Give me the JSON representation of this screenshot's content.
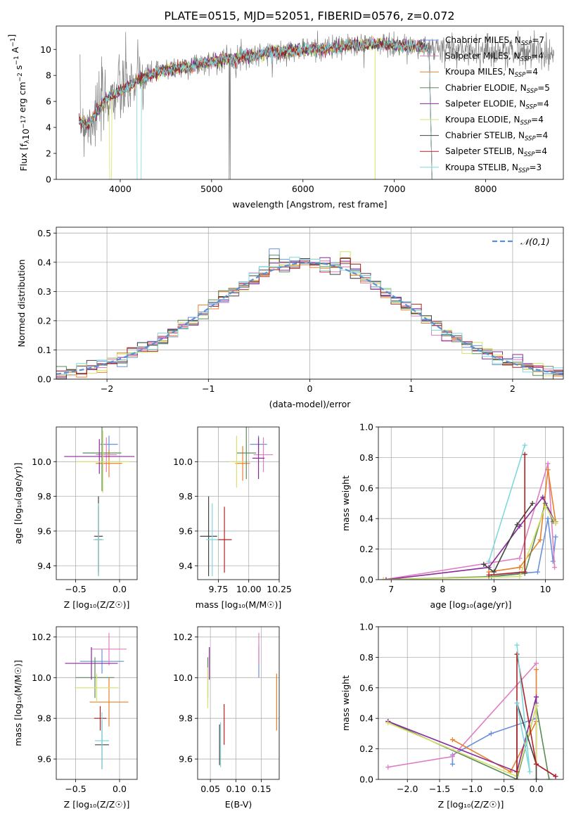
{
  "figure_title": "PLATE=0515, MJD=52051, FIBERID=0576, z=0.072",
  "colors": {
    "CM": "#6a8fdc",
    "SM": "#e07fc0",
    "KM": "#e8802a",
    "CE": "#5a8a5a",
    "SE": "#8a2a9a",
    "KE": "#d7e26a",
    "CS": "#444444",
    "SS": "#b22222",
    "KS": "#7fd8dc",
    "data": "#7f7f7f",
    "gauss": "#5b8fd0"
  },
  "chart_data": [
    {
      "id": "spectrum",
      "type": "line",
      "xlabel": "wavelength [Angstrom, rest frame]",
      "ylabel": "Flux [f_λ10^-17 erg cm^-2 s^-1 A^-1]",
      "xlim": [
        3300,
        8850
      ],
      "ylim": [
        0,
        11.8
      ],
      "xticks": [
        4000,
        5000,
        6000,
        7000,
        8000
      ],
      "yticks": [
        0,
        2,
        4,
        6,
        8,
        10
      ],
      "grid": false,
      "legend_position": "right",
      "legend": [
        {
          "key": "CM",
          "label": "Chabrier MILES, N",
          "sub": "SSP",
          "rest": "=7"
        },
        {
          "key": "SM",
          "label": "Salpeter MILES, N",
          "sub": "SSP",
          "rest": "=4"
        },
        {
          "key": "KM",
          "label": "Kroupa MILES, N",
          "sub": "SSP",
          "rest": "=4"
        },
        {
          "key": "CE",
          "label": "Chabrier ELODIE, N",
          "sub": "SSP",
          "rest": "=5"
        },
        {
          "key": "SE",
          "label": "Salpeter ELODIE, N",
          "sub": "SSP",
          "rest": "=4"
        },
        {
          "key": "KE",
          "label": "Kroupa ELODIE, N",
          "sub": "SSP",
          "rest": "=4"
        },
        {
          "key": "CS",
          "label": "Chabrier STELIB, N",
          "sub": "SSP",
          "rest": "=4"
        },
        {
          "key": "SS",
          "label": "Salpeter STELIB, N",
          "sub": "SSP",
          "rest": "=4"
        },
        {
          "key": "KS",
          "label": "Kroupa STELIB, N",
          "sub": "SSP",
          "rest": "=3"
        }
      ],
      "continuum": [
        [
          3550,
          4.6
        ],
        [
          3650,
          4.2
        ],
        [
          3750,
          5.2
        ],
        [
          3850,
          6.2
        ],
        [
          3950,
          6.6
        ],
        [
          4050,
          7.0
        ],
        [
          4150,
          7.4
        ],
        [
          4300,
          8.0
        ],
        [
          4500,
          8.4
        ],
        [
          4700,
          8.6
        ],
        [
          4900,
          8.9
        ],
        [
          5100,
          9.2
        ],
        [
          5300,
          9.4
        ],
        [
          5500,
          9.6
        ],
        [
          5700,
          9.8
        ],
        [
          5900,
          9.9
        ],
        [
          6100,
          10.0
        ],
        [
          6300,
          10.1
        ],
        [
          6500,
          10.3
        ],
        [
          6700,
          10.4
        ],
        [
          6900,
          10.4
        ],
        [
          7100,
          10.3
        ],
        [
          7300,
          10.2
        ],
        [
          7420,
          10.1
        ]
      ],
      "model_range": [
        3550,
        7420
      ],
      "data_range": [
        3560,
        8750
      ]
    },
    {
      "id": "residual_hist",
      "type": "step",
      "xlabel": "(data-model)/error",
      "ylabel": "Normed distribution",
      "xlim": [
        -2.5,
        2.5
      ],
      "ylim": [
        0,
        0.52
      ],
      "xticks": [
        -2,
        -1,
        0,
        1,
        2
      ],
      "yticks": [
        0.0,
        0.1,
        0.2,
        0.3,
        0.4,
        0.5
      ],
      "grid": true,
      "legend_position": "top-right",
      "legend_label": "𝒩(0,1)",
      "bins": 50
    },
    {
      "id": "age_vs_Z",
      "type": "errorbar",
      "xlabel": "Z [log₁₀(Z/Z☉)]",
      "ylabel": "age  [log₁₀(age/yr)]",
      "xlim": [
        -0.72,
        0.2
      ],
      "ylim": [
        9.32,
        10.2
      ],
      "xticks": [
        -0.5,
        0.0
      ],
      "yticks": [
        9.4,
        9.6,
        9.8,
        10.0
      ],
      "grid": true,
      "points": [
        {
          "key": "CM",
          "x": -0.12,
          "y": 10.1,
          "xe": 0.1,
          "ye": 0.05
        },
        {
          "key": "SM",
          "x": -0.15,
          "y": 10.04,
          "xe": 0.12,
          "ye": 0.1
        },
        {
          "key": "KM",
          "x": -0.12,
          "y": 9.99,
          "xe": 0.15,
          "ye": 0.08
        },
        {
          "key": "CE",
          "x": -0.2,
          "y": 10.05,
          "xe": 0.22,
          "ye": 0.22
        },
        {
          "key": "SE",
          "x": -0.23,
          "y": 10.03,
          "xe": 0.4,
          "ye": 0.1
        },
        {
          "key": "KE",
          "x": -0.19,
          "y": 10.0,
          "xe": 0.3,
          "ye": 0.18
        },
        {
          "key": "CS",
          "x": -0.24,
          "y": 9.57,
          "xe": 0.05,
          "ye": 0.23
        },
        {
          "key": "SS",
          "x": -0.24,
          "y": 9.55,
          "xe": 0.04,
          "ye": 0.19
        },
        {
          "key": "KS",
          "x": -0.24,
          "y": 9.55,
          "xe": 0.06,
          "ye": 0.21
        }
      ]
    },
    {
      "id": "age_vs_mass",
      "type": "errorbar",
      "xlabel": "mass [log₁₀(M/M☉)]",
      "ylabel": "",
      "xlim": [
        9.58,
        10.25
      ],
      "ylim": [
        9.32,
        10.2
      ],
      "xticks": [
        9.75,
        10.0,
        10.25
      ],
      "xticklabels": [
        "9.75",
        "10.00",
        "10.25"
      ],
      "yticks": [
        9.4,
        9.6,
        9.8,
        10.0
      ],
      "grid": true,
      "points": [
        {
          "key": "CM",
          "x": 10.08,
          "y": 10.1,
          "xe": 0.07,
          "ye": 0.05
        },
        {
          "key": "SM",
          "x": 10.12,
          "y": 10.04,
          "xe": 0.08,
          "ye": 0.1
        },
        {
          "key": "KM",
          "x": 9.95,
          "y": 9.99,
          "xe": 0.06,
          "ye": 0.1
        },
        {
          "key": "CE",
          "x": 9.98,
          "y": 10.05,
          "xe": 0.08,
          "ye": 0.15
        },
        {
          "key": "SE",
          "x": 10.08,
          "y": 10.02,
          "xe": 0.05,
          "ye": 0.12
        },
        {
          "key": "KE",
          "x": 9.9,
          "y": 10.0,
          "xe": 0.06,
          "ye": 0.15
        },
        {
          "key": "CS",
          "x": 9.67,
          "y": 9.57,
          "xe": 0.07,
          "ye": 0.23
        },
        {
          "key": "SS",
          "x": 9.8,
          "y": 9.55,
          "xe": 0.06,
          "ye": 0.19
        },
        {
          "key": "KS",
          "x": 9.7,
          "y": 9.55,
          "xe": 0.05,
          "ye": 0.21
        }
      ]
    },
    {
      "id": "massweight_vs_age",
      "type": "line",
      "xlabel": "age  [log₁₀(age/yr)]",
      "ylabel": "mass weight",
      "xlim": [
        6.75,
        10.35
      ],
      "ylim": [
        0,
        1.0
      ],
      "xticks": [
        7,
        8,
        9,
        10
      ],
      "yticks": [
        0.0,
        0.2,
        0.4,
        0.6,
        0.8,
        1.0
      ],
      "grid": true,
      "series": [
        {
          "key": "CM",
          "points": [
            [
              8.9,
              0.02
            ],
            [
              9.5,
              0.04
            ],
            [
              9.85,
              0.05
            ],
            [
              10.05,
              0.4
            ],
            [
              10.15,
              0.12
            ],
            [
              10.2,
              0.28
            ]
          ]
        },
        {
          "key": "SM",
          "points": [
            [
              6.85,
              0.0
            ],
            [
              9.5,
              0.14
            ],
            [
              10.05,
              0.76
            ],
            [
              10.18,
              0.08
            ]
          ]
        },
        {
          "key": "KM",
          "points": [
            [
              8.9,
              0.05
            ],
            [
              9.5,
              0.08
            ],
            [
              9.9,
              0.26
            ],
            [
              10.05,
              0.72
            ],
            [
              10.2,
              0.38
            ]
          ]
        },
        {
          "key": "CE",
          "points": [
            [
              6.85,
              0.0
            ],
            [
              8.95,
              0.02
            ],
            [
              9.6,
              0.04
            ],
            [
              10.0,
              0.5
            ],
            [
              10.15,
              0.38
            ]
          ]
        },
        {
          "key": "SE",
          "points": [
            [
              6.9,
              0.0
            ],
            [
              8.9,
              0.08
            ],
            [
              9.5,
              0.35
            ],
            [
              9.95,
              0.54
            ],
            [
              10.2,
              0.37
            ]
          ]
        },
        {
          "key": "KE",
          "points": [
            [
              6.85,
              0.0
            ],
            [
              9.5,
              0.02
            ],
            [
              10.0,
              0.48
            ],
            [
              10.2,
              0.37
            ]
          ]
        },
        {
          "key": "CS",
          "points": [
            [
              8.8,
              0.1
            ],
            [
              9.0,
              0.05
            ],
            [
              9.45,
              0.36
            ],
            [
              9.75,
              0.5
            ]
          ]
        },
        {
          "key": "SS",
          "points": [
            [
              8.9,
              0.03
            ],
            [
              9.6,
              0.05
            ],
            [
              9.6,
              0.82
            ]
          ]
        },
        {
          "key": "KS",
          "points": [
            [
              8.9,
              0.12
            ],
            [
              9.6,
              0.88
            ]
          ]
        }
      ]
    },
    {
      "id": "mass_vs_Z",
      "type": "errorbar",
      "xlabel": "Z [log₁₀(Z/Z☉)]",
      "ylabel": "mass [log₁₀(M/M☉)]",
      "xlim": [
        -0.72,
        0.2
      ],
      "ylim": [
        9.5,
        10.25
      ],
      "xticks": [
        -0.5,
        0.0
      ],
      "yticks": [
        9.6,
        9.8,
        10.0,
        10.2
      ],
      "grid": true,
      "points": [
        {
          "key": "CM",
          "x": -0.2,
          "y": 10.08,
          "xe": 0.25,
          "ye": 0.06
        },
        {
          "key": "SM",
          "x": -0.12,
          "y": 10.14,
          "xe": 0.2,
          "ye": 0.08
        },
        {
          "key": "KM",
          "x": -0.12,
          "y": 9.88,
          "xe": 0.22,
          "ye": 0.12
        },
        {
          "key": "CE",
          "x": -0.28,
          "y": 10.0,
          "xe": 0.22,
          "ye": 0.1
        },
        {
          "key": "SE",
          "x": -0.32,
          "y": 10.07,
          "xe": 0.3,
          "ye": 0.08
        },
        {
          "key": "KE",
          "x": -0.26,
          "y": 9.95,
          "xe": 0.25,
          "ye": 0.07
        },
        {
          "key": "CS",
          "x": -0.2,
          "y": 9.67,
          "xe": 0.08,
          "ye": 0.12
        },
        {
          "key": "SS",
          "x": -0.22,
          "y": 9.8,
          "xe": 0.07,
          "ye": 0.06
        },
        {
          "key": "KS",
          "x": -0.2,
          "y": 9.69,
          "xe": 0.08,
          "ye": 0.14
        }
      ]
    },
    {
      "id": "mass_vs_ebv",
      "type": "errorbar",
      "xlabel": "E(B-V)",
      "ylabel": "",
      "xlim": [
        0.025,
        0.185
      ],
      "ylim": [
        9.5,
        10.25
      ],
      "xticks": [
        0.05,
        0.1,
        0.15
      ],
      "yticks": [
        9.6,
        9.8,
        10.0,
        10.2
      ],
      "grid": true,
      "points": [
        {
          "key": "CM",
          "x": 0.145,
          "y": 10.08,
          "xe": 0.0,
          "ye": 0.08
        },
        {
          "key": "SM",
          "x": 0.145,
          "y": 10.14,
          "xe": 0.0,
          "ye": 0.08
        },
        {
          "key": "KM",
          "x": 0.18,
          "y": 9.88,
          "xe": 0.0,
          "ye": 0.14
        },
        {
          "key": "CE",
          "x": 0.045,
          "y": 10.0,
          "xe": 0.0,
          "ye": 0.1
        },
        {
          "key": "SE",
          "x": 0.048,
          "y": 10.07,
          "xe": 0.0,
          "ye": 0.08
        },
        {
          "key": "KE",
          "x": 0.045,
          "y": 9.95,
          "xe": 0.0,
          "ye": 0.1
        },
        {
          "key": "CS",
          "x": 0.068,
          "y": 9.67,
          "xe": 0.0,
          "ye": 0.1
        },
        {
          "key": "SS",
          "x": 0.077,
          "y": 9.77,
          "xe": 0.0,
          "ye": 0.1
        },
        {
          "key": "KS",
          "x": 0.07,
          "y": 9.67,
          "xe": 0.0,
          "ye": 0.11
        }
      ]
    },
    {
      "id": "massweight_vs_Z",
      "type": "line",
      "xlabel": "Z [log₁₀(Z/Z☉)]",
      "ylabel": "mass weight",
      "xlim": [
        -2.45,
        0.42
      ],
      "ylim": [
        0,
        1.0
      ],
      "xticks": [
        -2.0,
        -1.5,
        -1.0,
        -0.5,
        0.0
      ],
      "xticklabels": [
        "−2.0",
        "−1.5",
        "−1.0",
        "−0.5",
        "0.0"
      ],
      "yticks": [
        0.0,
        0.2,
        0.4,
        0.6,
        0.8,
        1.0
      ],
      "grid": true,
      "series": [
        {
          "key": "CM",
          "points": [
            [
              -1.3,
              0.1
            ],
            [
              -1.3,
              0.16
            ],
            [
              -0.7,
              0.3
            ],
            [
              0.0,
              0.4
            ],
            [
              0.0,
              0.5
            ]
          ]
        },
        {
          "key": "SM",
          "points": [
            [
              -2.3,
              0.08
            ],
            [
              -1.3,
              0.15
            ],
            [
              0.0,
              0.76
            ]
          ]
        },
        {
          "key": "KM",
          "points": [
            [
              -1.3,
              0.26
            ],
            [
              -0.4,
              0.05
            ],
            [
              0.0,
              0.38
            ],
            [
              0.0,
              0.72
            ]
          ]
        },
        {
          "key": "CE",
          "points": [
            [
              -2.3,
              0.38
            ],
            [
              -0.3,
              0.0
            ],
            [
              0.0,
              0.48
            ],
            [
              0.2,
              0.0
            ]
          ]
        },
        {
          "key": "SE",
          "points": [
            [
              -2.3,
              0.38
            ],
            [
              -0.3,
              0.05
            ],
            [
              0.0,
              0.54
            ],
            [
              0.0,
              0.1
            ],
            [
              0.3,
              0.02
            ]
          ]
        },
        {
          "key": "KE",
          "points": [
            [
              -2.3,
              0.37
            ],
            [
              -0.3,
              0.02
            ],
            [
              0.0,
              0.48
            ],
            [
              0.0,
              0.0
            ]
          ]
        },
        {
          "key": "CS",
          "points": [
            [
              -0.3,
              0.0
            ],
            [
              -0.3,
              0.5
            ],
            [
              0.0,
              0.1
            ],
            [
              0.0,
              0.0
            ]
          ]
        },
        {
          "key": "SS",
          "points": [
            [
              -0.3,
              0.05
            ],
            [
              -0.3,
              0.82
            ],
            [
              0.0,
              0.1
            ],
            [
              0.3,
              0.02
            ]
          ]
        },
        {
          "key": "KS",
          "points": [
            [
              -0.3,
              0.5
            ],
            [
              -0.1,
              0.05
            ],
            [
              -0.3,
              0.88
            ]
          ]
        }
      ]
    }
  ]
}
